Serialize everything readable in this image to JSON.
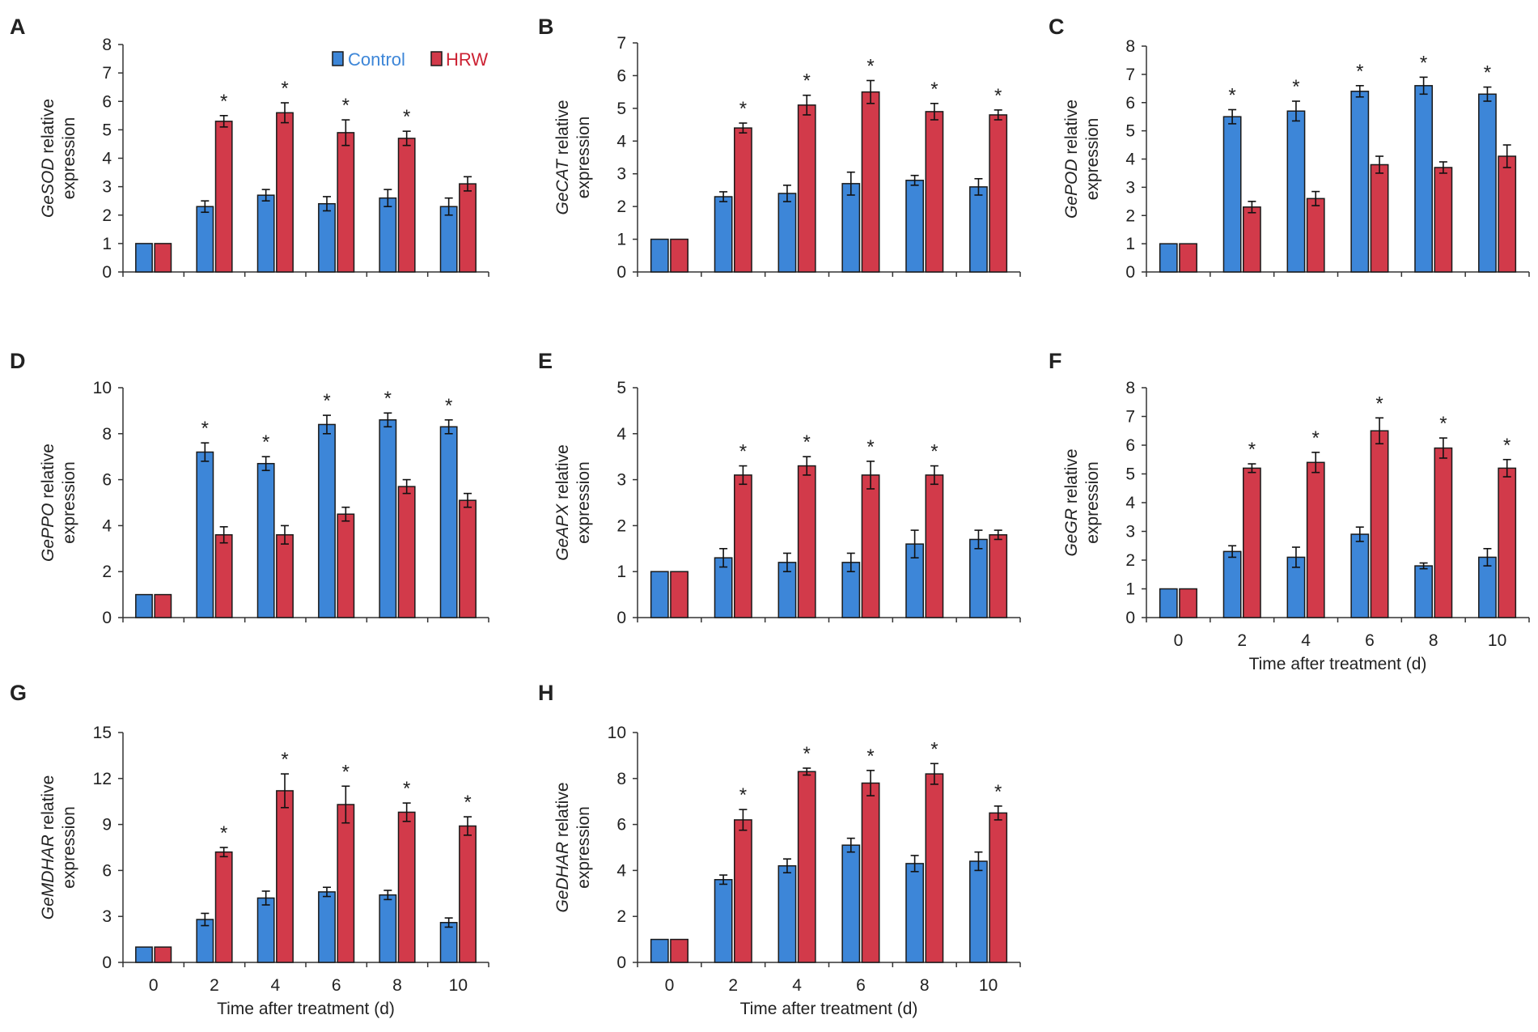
{
  "legend": {
    "control_label": "Control",
    "hrw_label": "HRW",
    "control_color": "#3d86d8",
    "hrw_color": "#d23a4a",
    "control_text_color": "#3d86d8",
    "hrw_text_color": "#cc2233"
  },
  "common": {
    "categories": [
      "0",
      "2",
      "4",
      "6",
      "8",
      "10"
    ],
    "xlabel": "Time after treatment (d)",
    "ylabel_suffix": "relative",
    "ylabel_line2": "expression",
    "star": "*"
  },
  "chart_data": [
    {
      "type": "bar",
      "panel": "A",
      "gene": "GeSOD",
      "categories": [
        "0",
        "2",
        "4",
        "6",
        "8",
        "10"
      ],
      "ylim": [
        0,
        8
      ],
      "yticks": [
        0,
        1,
        2,
        3,
        4,
        5,
        6,
        7,
        8
      ],
      "show_xticks": false,
      "show_xlabel": false,
      "series": [
        {
          "name": "Control",
          "values": [
            1,
            2.3,
            2.7,
            2.4,
            2.6,
            2.3
          ],
          "errors": [
            0,
            0.2,
            0.2,
            0.25,
            0.3,
            0.3
          ]
        },
        {
          "name": "HRW",
          "values": [
            1,
            5.3,
            5.6,
            4.9,
            4.7,
            3.1
          ],
          "errors": [
            0,
            0.2,
            0.35,
            0.45,
            0.25,
            0.25
          ]
        }
      ],
      "significance": [
        {
          "index": 1,
          "series": "HRW"
        },
        {
          "index": 2,
          "series": "HRW"
        },
        {
          "index": 3,
          "series": "HRW"
        },
        {
          "index": 4,
          "series": "HRW"
        }
      ]
    },
    {
      "type": "bar",
      "panel": "B",
      "gene": "GeCAT",
      "categories": [
        "0",
        "2",
        "4",
        "6",
        "8",
        "10"
      ],
      "ylim": [
        0,
        7
      ],
      "yticks": [
        0,
        1,
        2,
        3,
        4,
        5,
        6,
        7
      ],
      "show_xticks": false,
      "show_xlabel": false,
      "series": [
        {
          "name": "Control",
          "values": [
            1,
            2.3,
            2.4,
            2.7,
            2.8,
            2.6
          ],
          "errors": [
            0,
            0.15,
            0.25,
            0.35,
            0.15,
            0.25
          ]
        },
        {
          "name": "HRW",
          "values": [
            1,
            4.4,
            5.1,
            5.5,
            4.9,
            4.8
          ],
          "errors": [
            0,
            0.15,
            0.3,
            0.35,
            0.25,
            0.15
          ]
        }
      ],
      "significance": [
        {
          "index": 1,
          "series": "HRW"
        },
        {
          "index": 2,
          "series": "HRW"
        },
        {
          "index": 3,
          "series": "HRW"
        },
        {
          "index": 4,
          "series": "HRW"
        },
        {
          "index": 5,
          "series": "HRW"
        }
      ]
    },
    {
      "type": "bar",
      "panel": "C",
      "gene": "GePOD",
      "categories": [
        "0",
        "2",
        "4",
        "6",
        "8",
        "10"
      ],
      "ylim": [
        0,
        8
      ],
      "yticks": [
        0,
        1,
        2,
        3,
        4,
        5,
        6,
        7,
        8
      ],
      "show_xticks": false,
      "show_xlabel": false,
      "series": [
        {
          "name": "Control",
          "values": [
            1,
            5.5,
            5.7,
            6.4,
            6.6,
            6.3
          ],
          "errors": [
            0,
            0.25,
            0.35,
            0.2,
            0.3,
            0.25
          ]
        },
        {
          "name": "HRW",
          "values": [
            1,
            2.3,
            2.6,
            3.8,
            3.7,
            4.1
          ],
          "errors": [
            0,
            0.2,
            0.25,
            0.3,
            0.2,
            0.4
          ]
        }
      ],
      "significance": [
        {
          "index": 1,
          "series": "Control"
        },
        {
          "index": 2,
          "series": "Control"
        },
        {
          "index": 3,
          "series": "Control"
        },
        {
          "index": 4,
          "series": "Control"
        },
        {
          "index": 5,
          "series": "Control"
        }
      ]
    },
    {
      "type": "bar",
      "panel": "D",
      "gene": "GePPO",
      "categories": [
        "0",
        "2",
        "4",
        "6",
        "8",
        "10"
      ],
      "ylim": [
        0,
        10
      ],
      "yticks": [
        0,
        2,
        4,
        6,
        8,
        10
      ],
      "show_xticks": false,
      "show_xlabel": false,
      "series": [
        {
          "name": "Control",
          "values": [
            1,
            7.2,
            6.7,
            8.4,
            8.6,
            8.3
          ],
          "errors": [
            0,
            0.4,
            0.3,
            0.4,
            0.3,
            0.3
          ]
        },
        {
          "name": "HRW",
          "values": [
            1,
            3.6,
            3.6,
            4.5,
            5.7,
            5.1
          ],
          "errors": [
            0,
            0.35,
            0.4,
            0.3,
            0.3,
            0.3
          ]
        }
      ],
      "significance": [
        {
          "index": 1,
          "series": "Control"
        },
        {
          "index": 2,
          "series": "Control"
        },
        {
          "index": 3,
          "series": "Control"
        },
        {
          "index": 4,
          "series": "Control"
        },
        {
          "index": 5,
          "series": "Control"
        }
      ]
    },
    {
      "type": "bar",
      "panel": "E",
      "gene": "GeAPX",
      "categories": [
        "0",
        "2",
        "4",
        "6",
        "8",
        "10"
      ],
      "ylim": [
        0,
        5
      ],
      "yticks": [
        0,
        1,
        2,
        3,
        4,
        5
      ],
      "show_xticks": false,
      "show_xlabel": false,
      "series": [
        {
          "name": "Control",
          "values": [
            1,
            1.3,
            1.2,
            1.2,
            1.6,
            1.7
          ],
          "errors": [
            0,
            0.2,
            0.2,
            0.2,
            0.3,
            0.2
          ]
        },
        {
          "name": "HRW",
          "values": [
            1,
            3.1,
            3.3,
            3.1,
            3.1,
            1.8
          ],
          "errors": [
            0,
            0.2,
            0.2,
            0.3,
            0.2,
            0.1
          ]
        }
      ],
      "significance": [
        {
          "index": 1,
          "series": "HRW"
        },
        {
          "index": 2,
          "series": "HRW"
        },
        {
          "index": 3,
          "series": "HRW"
        },
        {
          "index": 4,
          "series": "HRW"
        }
      ]
    },
    {
      "type": "bar",
      "panel": "F",
      "gene": "GeGR",
      "categories": [
        "0",
        "2",
        "4",
        "6",
        "8",
        "10"
      ],
      "ylim": [
        0,
        8
      ],
      "yticks": [
        0,
        1,
        2,
        3,
        4,
        5,
        6,
        7,
        8
      ],
      "show_xticks": true,
      "show_xlabel": true,
      "series": [
        {
          "name": "Control",
          "values": [
            1,
            2.3,
            2.1,
            2.9,
            1.8,
            2.1
          ],
          "errors": [
            0,
            0.2,
            0.35,
            0.25,
            0.1,
            0.3
          ]
        },
        {
          "name": "HRW",
          "values": [
            1,
            5.2,
            5.4,
            6.5,
            5.9,
            5.2
          ],
          "errors": [
            0,
            0.15,
            0.35,
            0.45,
            0.35,
            0.3
          ]
        }
      ],
      "significance": [
        {
          "index": 1,
          "series": "HRW"
        },
        {
          "index": 2,
          "series": "HRW"
        },
        {
          "index": 3,
          "series": "HRW"
        },
        {
          "index": 4,
          "series": "HRW"
        },
        {
          "index": 5,
          "series": "HRW"
        }
      ]
    },
    {
      "type": "bar",
      "panel": "G",
      "gene": "GeMDHAR",
      "categories": [
        "0",
        "2",
        "4",
        "6",
        "8",
        "10"
      ],
      "ylim": [
        0,
        15
      ],
      "yticks": [
        0,
        3,
        6,
        9,
        12,
        15
      ],
      "show_xticks": true,
      "show_xlabel": true,
      "series": [
        {
          "name": "Control",
          "values": [
            1,
            2.8,
            4.2,
            4.6,
            4.4,
            2.6
          ],
          "errors": [
            0,
            0.4,
            0.45,
            0.3,
            0.3,
            0.3
          ]
        },
        {
          "name": "HRW",
          "values": [
            1,
            7.2,
            11.2,
            10.3,
            9.8,
            8.9
          ],
          "errors": [
            0,
            0.3,
            1.1,
            1.2,
            0.6,
            0.6
          ]
        }
      ],
      "significance": [
        {
          "index": 1,
          "series": "HRW"
        },
        {
          "index": 2,
          "series": "HRW"
        },
        {
          "index": 3,
          "series": "HRW"
        },
        {
          "index": 4,
          "series": "HRW"
        },
        {
          "index": 5,
          "series": "HRW"
        }
      ]
    },
    {
      "type": "bar",
      "panel": "H",
      "gene": "GeDHAR",
      "categories": [
        "0",
        "2",
        "4",
        "6",
        "8",
        "10"
      ],
      "ylim": [
        0,
        10
      ],
      "yticks": [
        0,
        2,
        4,
        6,
        8,
        10
      ],
      "show_xticks": true,
      "show_xlabel": true,
      "series": [
        {
          "name": "Control",
          "values": [
            1,
            3.6,
            4.2,
            5.1,
            4.3,
            4.4
          ],
          "errors": [
            0,
            0.2,
            0.3,
            0.3,
            0.35,
            0.4
          ]
        },
        {
          "name": "HRW",
          "values": [
            1,
            6.2,
            8.3,
            7.8,
            8.2,
            6.5
          ],
          "errors": [
            0,
            0.45,
            0.15,
            0.55,
            0.45,
            0.3
          ]
        }
      ],
      "significance": [
        {
          "index": 1,
          "series": "HRW"
        },
        {
          "index": 2,
          "series": "HRW"
        },
        {
          "index": 3,
          "series": "HRW"
        },
        {
          "index": 4,
          "series": "HRW"
        },
        {
          "index": 5,
          "series": "HRW"
        }
      ]
    }
  ]
}
